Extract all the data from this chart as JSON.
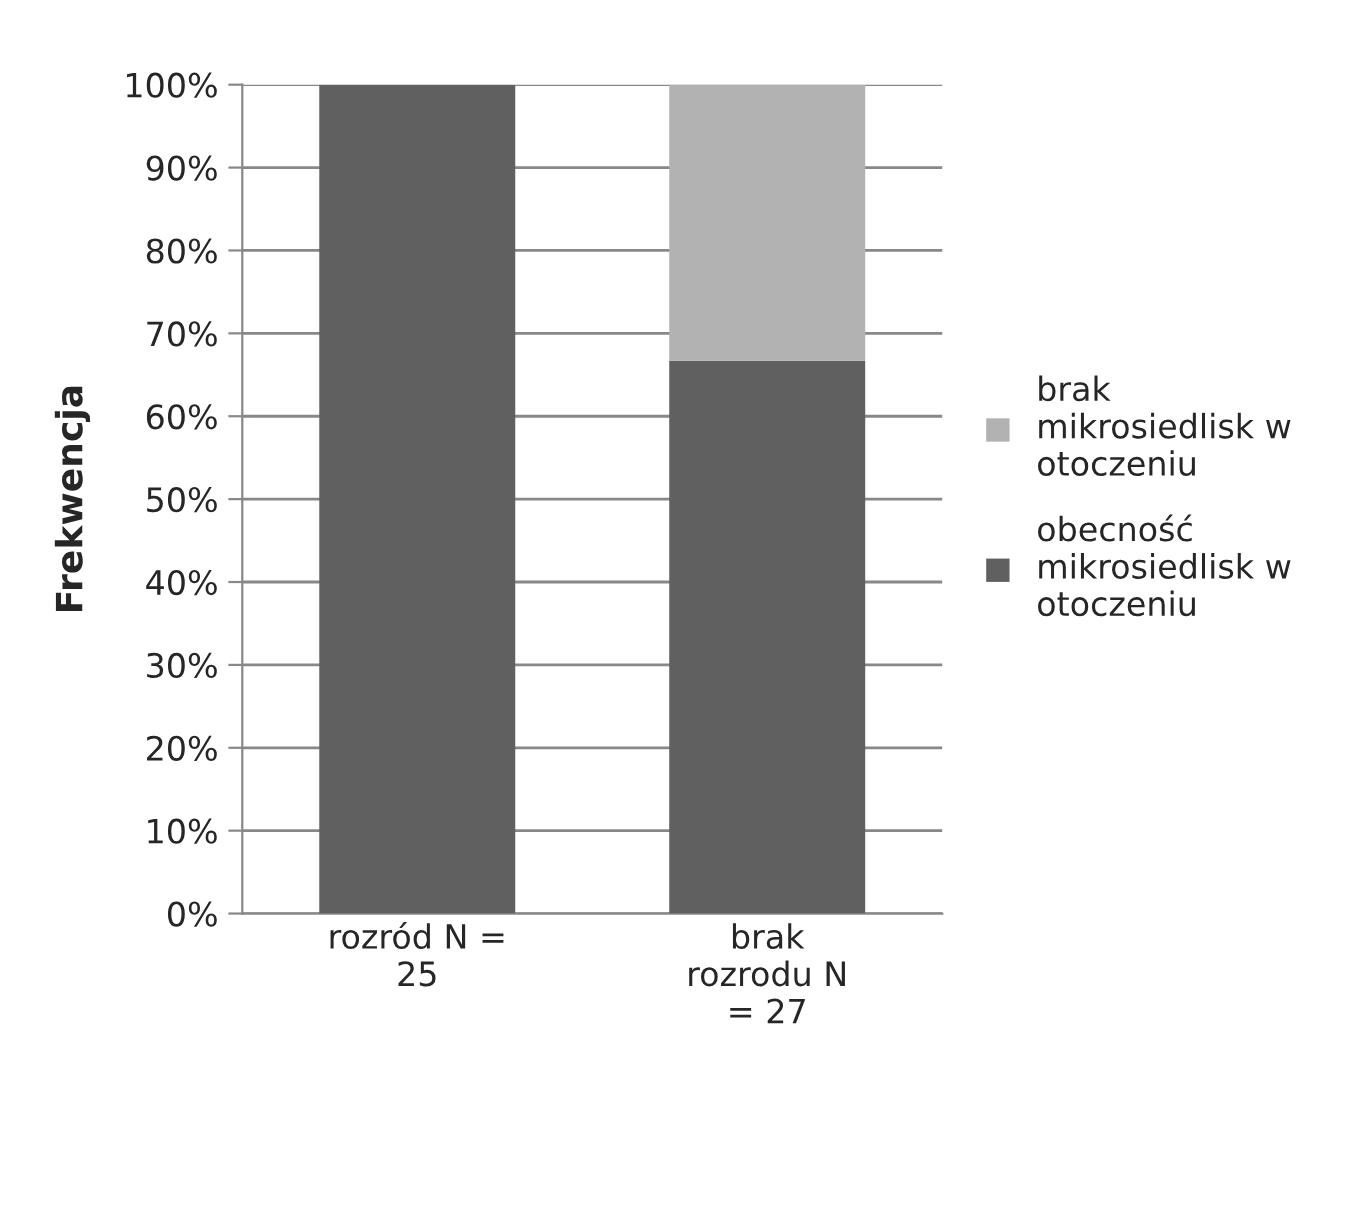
{
  "chart_data": {
    "type": "bar",
    "stacked": true,
    "ylabel": "Frekwencja",
    "categories": [
      "rozród N =\n25",
      "brak\nrozrodu N\n= 27"
    ],
    "series": [
      {
        "name": "obecność\nmikrosiedlisk w\notoczeniu",
        "color": "#606060",
        "values": [
          100,
          66.7
        ]
      },
      {
        "name": "brak\nmikrosiedlisk w\notoczeniu",
        "color": "#b2b2b2",
        "values": [
          null,
          33.3
        ]
      }
    ],
    "ylim": [
      0,
      100
    ],
    "yticks": [
      {
        "value": 0,
        "label": "0%"
      },
      {
        "value": 10,
        "label": "10%"
      },
      {
        "value": 20,
        "label": "20%"
      },
      {
        "value": 30,
        "label": "30%"
      },
      {
        "value": 40,
        "label": "40%"
      },
      {
        "value": 50,
        "label": "50%"
      },
      {
        "value": 60,
        "label": "60%"
      },
      {
        "value": 70,
        "label": "70%"
      },
      {
        "value": 80,
        "label": "80%"
      },
      {
        "value": 90,
        "label": "90%"
      },
      {
        "value": 100,
        "label": "100%"
      }
    ],
    "grid": "y",
    "legend": "right"
  }
}
